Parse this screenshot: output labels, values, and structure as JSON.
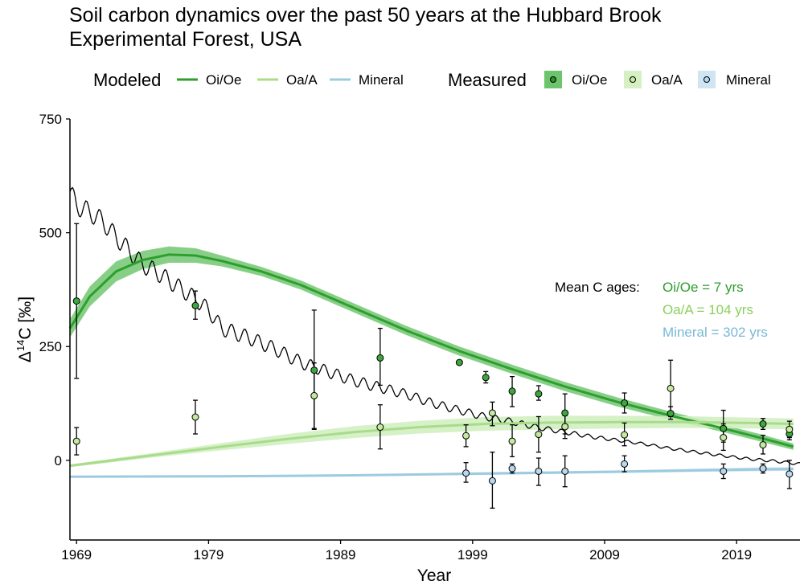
{
  "title": {
    "line1": "Soil carbon dynamics over the past 50 years at the Hubbard Brook",
    "line2": "Experimental Forest, USA"
  },
  "legend": {
    "modeled_title": "Modeled",
    "measured_title": "Measured",
    "items": [
      "Oi/Oe",
      "Oa/A",
      "Mineral"
    ]
  },
  "annotations": {
    "heading": "Mean C ages:",
    "oi": "Oi/Oe = 7 yrs",
    "oa": "Oa/A = 104 yrs",
    "mineral": "Mineral = 302 yrs"
  },
  "colors": {
    "oi_line": "#2e9e2e",
    "oi_band": "#5fbf5f",
    "oi_point": "#3aa83a",
    "oa_line": "#a8dc8a",
    "oa_band": "#cfeebe",
    "oa_point": "#c4ea9e",
    "min_line": "#9ccbe0",
    "min_band": "#c9e3f0",
    "min_point": "#b7d8ef",
    "atmosphere": "#000000"
  },
  "chart_data": {
    "type": "line",
    "xlabel": "Year",
    "ylabel": "Δ14C [‰]",
    "xlim": [
      1968.5,
      2023.8
    ],
    "ylim": [
      -175,
      750
    ],
    "x_ticks": [
      1969,
      1979,
      1989,
      1999,
      2009,
      2019
    ],
    "y_ticks": [
      0,
      250,
      500,
      750
    ],
    "grid": false,
    "legend_position": "top",
    "modeled": [
      {
        "name": "Oi/Oe",
        "x": [
          1968.5,
          1970,
          1972,
          1974,
          1976,
          1978,
          1980,
          1983,
          1986,
          1990,
          1994,
          1998,
          2002,
          2006,
          2010,
          2014,
          2018,
          2021,
          2023.3
        ],
        "y": [
          290,
          360,
          415,
          440,
          452,
          450,
          438,
          415,
          385,
          335,
          285,
          240,
          200,
          162,
          128,
          98,
          70,
          48,
          30
        ],
        "band_halfwidth": [
          20,
          22,
          22,
          20,
          18,
          16,
          12,
          10,
          10,
          10,
          10,
          10,
          10,
          10,
          10,
          9,
          8,
          8,
          7
        ]
      },
      {
        "name": "Oa/A",
        "x": [
          1968.5,
          1975,
          1980,
          1985,
          1990,
          1995,
          2000,
          2005,
          2010,
          2015,
          2020,
          2023.3
        ],
        "y": [
          -12,
          12,
          30,
          47,
          62,
          73,
          80,
          83,
          84,
          84,
          82,
          80
        ],
        "band_halfwidth": [
          3,
          5,
          8,
          11,
          13,
          14,
          15,
          15,
          14,
          13,
          12,
          12
        ]
      },
      {
        "name": "Mineral",
        "x": [
          1968.5,
          1980,
          1990,
          2000,
          2010,
          2020,
          2023.3
        ],
        "y": [
          -36,
          -35,
          -33,
          -29,
          -25,
          -20,
          -19
        ],
        "band_halfwidth": [
          2,
          2,
          2,
          3,
          3,
          4,
          4
        ]
      }
    ],
    "atmosphere": {
      "x": [
        1968.5,
        1969,
        1970,
        1971,
        1972,
        1973,
        1974,
        1975,
        1976,
        1977,
        1978,
        1979,
        1980,
        1982,
        1984,
        1986,
        1988,
        1990,
        1992,
        1994,
        1996,
        1998,
        2000,
        2002,
        2004,
        2006,
        2008,
        2010,
        2012,
        2014,
        2016,
        2018,
        2020,
        2022,
        2023.8
      ],
      "y": [
        590,
        560,
        545,
        525,
        490,
        460,
        430,
        415,
        395,
        375,
        355,
        330,
        290,
        270,
        245,
        215,
        195,
        175,
        160,
        145,
        125,
        110,
        95,
        85,
        72,
        62,
        52,
        44,
        36,
        26,
        18,
        10,
        3,
        -2,
        -8
      ]
    },
    "measured": [
      {
        "name": "Oi/Oe",
        "points": [
          {
            "x": 1969,
            "y": 350,
            "lo": 180,
            "hi": 520
          },
          {
            "x": 1978,
            "y": 340,
            "lo": 310,
            "hi": 372
          },
          {
            "x": 1987,
            "y": 198,
            "lo": 68,
            "hi": 330
          },
          {
            "x": 1992,
            "y": 225,
            "lo": 165,
            "hi": 290
          },
          {
            "x": 1998,
            "y": 215
          },
          {
            "x": 2000,
            "y": 182,
            "lo": 170,
            "hi": 195
          },
          {
            "x": 2002,
            "y": 152,
            "lo": 118,
            "hi": 184
          },
          {
            "x": 2004,
            "y": 146,
            "lo": 132,
            "hi": 164
          },
          {
            "x": 2006,
            "y": 104,
            "lo": 58,
            "hi": 146
          },
          {
            "x": 2010.5,
            "y": 126,
            "lo": 104,
            "hi": 148
          },
          {
            "x": 2014,
            "y": 103,
            "lo": 90,
            "hi": 118
          },
          {
            "x": 2018,
            "y": 70,
            "lo": 40,
            "hi": 110
          },
          {
            "x": 2021,
            "y": 80,
            "lo": 68,
            "hi": 92
          },
          {
            "x": 2023,
            "y": 58,
            "lo": 45,
            "hi": 73
          }
        ]
      },
      {
        "name": "Oa/A",
        "points": [
          {
            "x": 1969,
            "y": 42,
            "lo": 12,
            "hi": 72
          },
          {
            "x": 1978,
            "y": 95,
            "lo": 58,
            "hi": 132
          },
          {
            "x": 1987,
            "y": 142,
            "lo": 70,
            "hi": 214
          },
          {
            "x": 1992,
            "y": 73,
            "lo": 25,
            "hi": 122
          },
          {
            "x": 1998.5,
            "y": 54,
            "lo": 30,
            "hi": 78
          },
          {
            "x": 2000.5,
            "y": 104,
            "lo": 76,
            "hi": 128
          },
          {
            "x": 2002,
            "y": 42,
            "lo": 8,
            "hi": 78
          },
          {
            "x": 2004,
            "y": 57,
            "lo": 18,
            "hi": 96
          },
          {
            "x": 2006,
            "y": 74,
            "lo": 48,
            "hi": 98
          },
          {
            "x": 2010.5,
            "y": 56,
            "lo": 32,
            "hi": 82
          },
          {
            "x": 2014,
            "y": 158,
            "lo": 96,
            "hi": 220
          },
          {
            "x": 2018,
            "y": 50,
            "lo": 22,
            "hi": 80
          },
          {
            "x": 2021,
            "y": 34,
            "lo": 14,
            "hi": 55
          },
          {
            "x": 2023,
            "y": 68,
            "lo": 50,
            "hi": 86
          }
        ]
      },
      {
        "name": "Mineral",
        "points": [
          {
            "x": 1998.5,
            "y": -28,
            "lo": -48,
            "hi": -5
          },
          {
            "x": 2000.5,
            "y": -45,
            "lo": -105,
            "hi": 18
          },
          {
            "x": 2002,
            "y": -18,
            "lo": -28,
            "hi": -8
          },
          {
            "x": 2004,
            "y": -24,
            "lo": -55,
            "hi": 5
          },
          {
            "x": 2006,
            "y": -24,
            "lo": -58,
            "hi": 10
          },
          {
            "x": 2010.5,
            "y": -8,
            "lo": -25,
            "hi": 10
          },
          {
            "x": 2018,
            "y": -24,
            "lo": -40,
            "hi": -8
          },
          {
            "x": 2021,
            "y": -18,
            "lo": -28,
            "hi": -8
          },
          {
            "x": 2023,
            "y": -30,
            "lo": -62,
            "hi": 0
          }
        ]
      }
    ]
  }
}
